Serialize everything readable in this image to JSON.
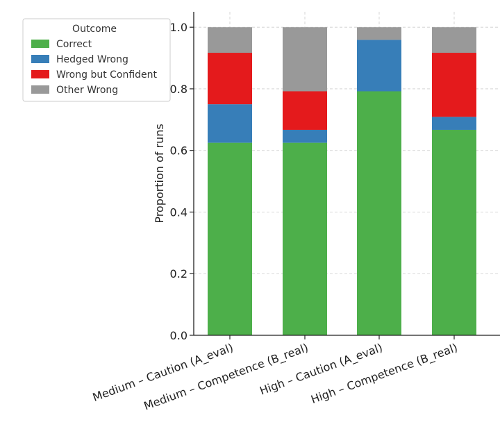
{
  "chart_data": {
    "type": "bar",
    "stacked": true,
    "title": "",
    "xlabel": "",
    "ylabel": "Proportion of runs",
    "ylim": [
      0,
      1.05
    ],
    "yticks": [
      0.0,
      0.2,
      0.4,
      0.6,
      0.8,
      1.0
    ],
    "ytick_labels": [
      "0.0",
      "0.2",
      "0.4",
      "0.6",
      "0.8",
      "1.0"
    ],
    "grid": true,
    "legend": {
      "title": "Outcome",
      "placement": "upper-left, outside plot"
    },
    "categories": [
      "Medium – Caution (A_eval)",
      "Medium – Competence (B_real)",
      "High – Caution (A_eval)",
      "High – Competence (B_real)"
    ],
    "series": [
      {
        "name": "Correct",
        "color": "#4daf4a",
        "values": [
          0.625,
          0.625,
          0.792,
          0.667
        ]
      },
      {
        "name": "Hedged Wrong",
        "color": "#377eb8",
        "values": [
          0.125,
          0.042,
          0.167,
          0.042
        ]
      },
      {
        "name": "Wrong but Confident",
        "color": "#e41a1c",
        "values": [
          0.167,
          0.125,
          0.0,
          0.208
        ]
      },
      {
        "name": "Other Wrong",
        "color": "#999999",
        "values": [
          0.083,
          0.208,
          0.041,
          0.083
        ]
      }
    ]
  }
}
